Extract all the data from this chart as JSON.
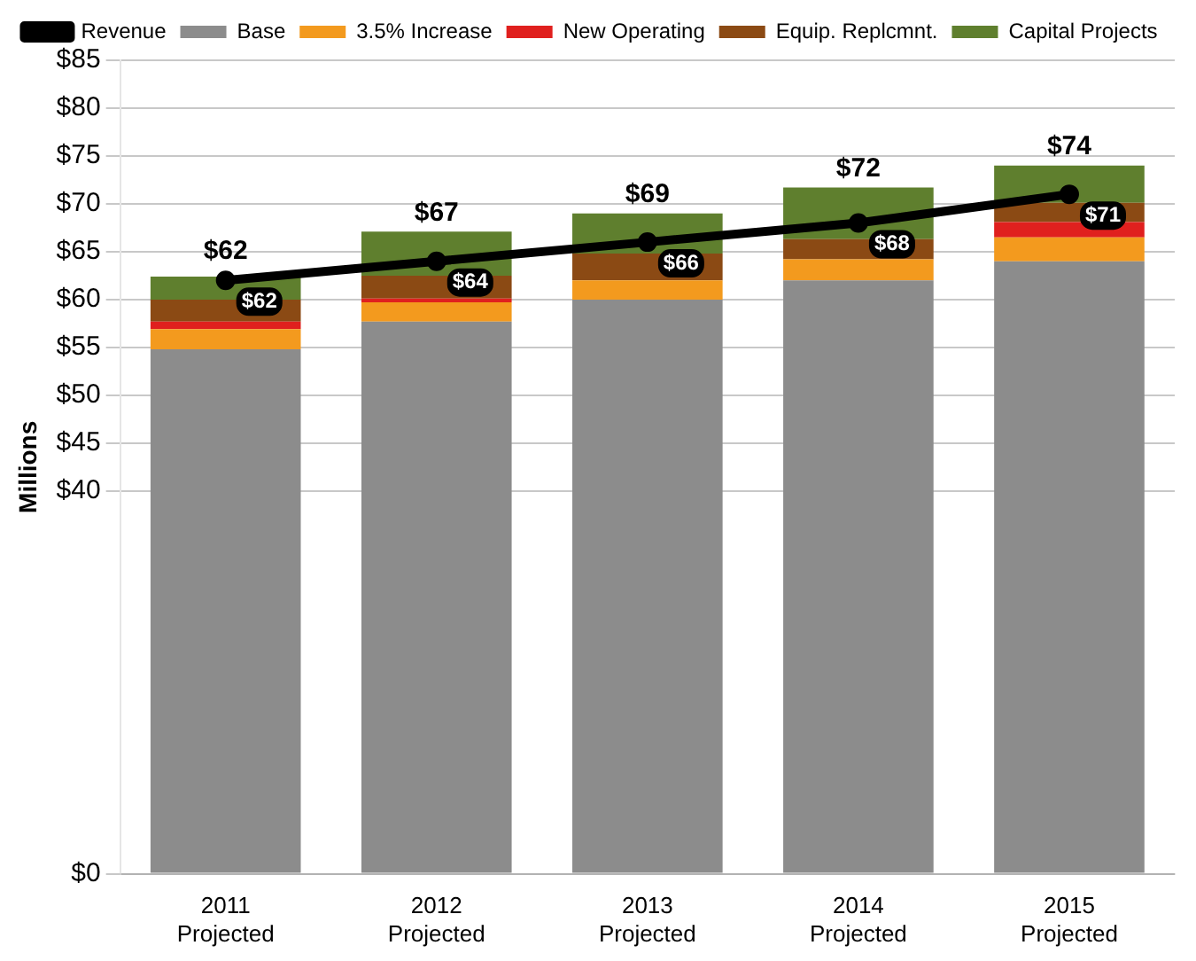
{
  "chart_data": {
    "type": "bar",
    "stacked": true,
    "ylabel": "Millions",
    "categories": [
      "2011\nProjected",
      "2012\nProjected",
      "2013\nProjected",
      "2014\nProjected",
      "2015\nProjected"
    ],
    "series": [
      {
        "name": "Base",
        "color": "#8c8c8c",
        "values": [
          54.8,
          57.7,
          60.0,
          62.0,
          64.0
        ]
      },
      {
        "name": "3.5% Increase",
        "color": "#f39a1e",
        "values": [
          2.1,
          2.0,
          2.0,
          2.2,
          2.5
        ]
      },
      {
        "name": "New Operating",
        "color": "#e0201e",
        "values": [
          0.8,
          0.4,
          0,
          0,
          1.6
        ]
      },
      {
        "name": "Equip. Replcmnt.",
        "color": "#8b4a14",
        "values": [
          2.3,
          2.4,
          2.8,
          2.1,
          2.0
        ]
      },
      {
        "name": "Capital Projects",
        "color": "#5f7f2e",
        "values": [
          2.4,
          4.6,
          4.2,
          5.4,
          3.9
        ]
      },
      {
        "name": "Revenue",
        "type": "line",
        "color": "#000000",
        "marker": "circle",
        "values": [
          62,
          64,
          66,
          68,
          71
        ],
        "value_labels": [
          "$62",
          "$64",
          "$66",
          "$68",
          "$71"
        ]
      }
    ],
    "totals": [
      "$62",
      "$67",
      "$69",
      "$72",
      "$74"
    ],
    "ylim": [
      0,
      85
    ],
    "yticks": [
      {
        "value": 0,
        "label": "$0"
      },
      {
        "value": 40,
        "label": "$40"
      },
      {
        "value": 45,
        "label": "$45"
      },
      {
        "value": 50,
        "label": "$50"
      },
      {
        "value": 55,
        "label": "$55"
      },
      {
        "value": 60,
        "label": "$60"
      },
      {
        "value": 65,
        "label": "$65"
      },
      {
        "value": 70,
        "label": "$70"
      },
      {
        "value": 75,
        "label": "$75"
      },
      {
        "value": 80,
        "label": "$80"
      },
      {
        "value": 85,
        "label": "$85"
      }
    ],
    "grid": "y",
    "legend": "top"
  }
}
